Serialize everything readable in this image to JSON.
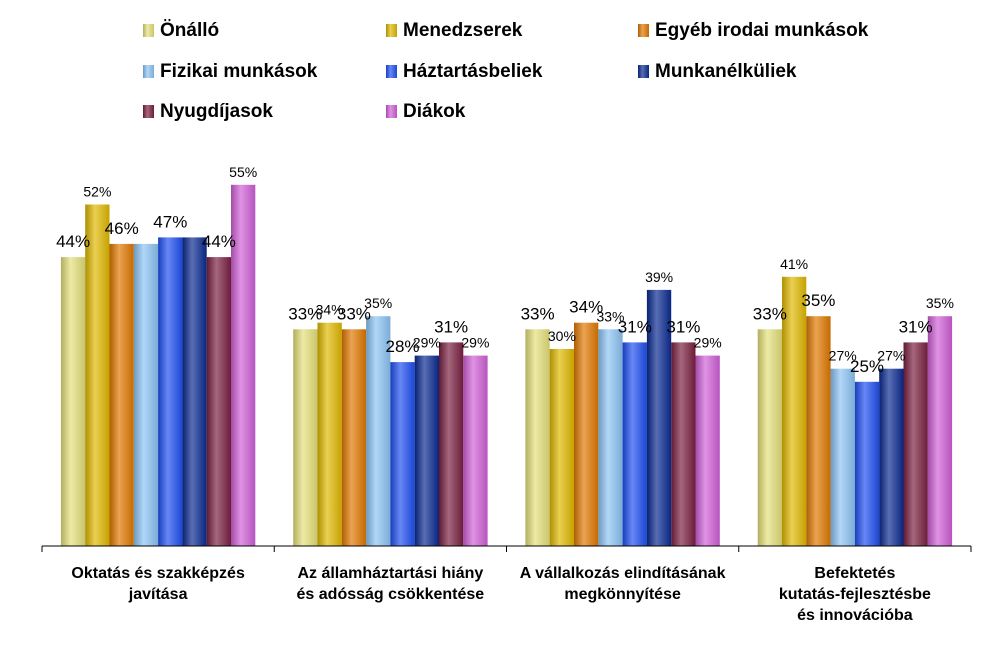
{
  "chart_data": {
    "type": "bar",
    "categories": [
      [
        "Oktatás és szakképzés",
        "javítása"
      ],
      [
        "Az államháztartási hiány",
        "és adósság csökkentése"
      ],
      [
        "A vállalkozás elindításának",
        "megkönnyítése"
      ],
      [
        "Befektetés",
        "kutatás-fejlesztésbe",
        "és innovációba"
      ]
    ],
    "series": [
      {
        "name": "Önálló",
        "color": "#E4E07A",
        "values": [
          44,
          33,
          33,
          33
        ]
      },
      {
        "name": "Menedzserek",
        "color": "#E0B800",
        "values": [
          52,
          34,
          30,
          41
        ]
      },
      {
        "name": "Egyéb irodai munkások",
        "color": "#E07800",
        "values": [
          46,
          33,
          34,
          35
        ]
      },
      {
        "name": "Fizikai munkások",
        "color": "#8CC4F4",
        "values": [
          46,
          35,
          33,
          27
        ]
      },
      {
        "name": "Háztartásbeliek",
        "color": "#1F4FF0",
        "values": [
          47,
          28,
          31,
          25
        ]
      },
      {
        "name": "Munkanélküliek",
        "color": "#0A2A90",
        "values": [
          47,
          29,
          39,
          27
        ]
      },
      {
        "name": "Nyugdíjasok",
        "color": "#7A2040",
        "values": [
          44,
          31,
          31,
          31
        ]
      },
      {
        "name": "Diákok",
        "color": "#D060D8",
        "values": [
          55,
          29,
          29,
          35
        ]
      }
    ],
    "value_labels": [
      [
        "44%",
        "52%",
        "46%",
        "",
        "47%",
        "",
        "44%",
        "55%"
      ],
      [
        "33%",
        "34%",
        "33%",
        "35%",
        "28%",
        "29%",
        "31%",
        "29%"
      ],
      [
        "33%",
        "30%",
        "34%",
        "33%",
        "31%",
        "39%",
        "31%",
        "29%"
      ],
      [
        "33%",
        "41%",
        "35%",
        "27%",
        "25%",
        "27%",
        "31%",
        "35%"
      ]
    ],
    "ylim": [
      0,
      60
    ],
    "legend_position": "top",
    "grid": false
  }
}
